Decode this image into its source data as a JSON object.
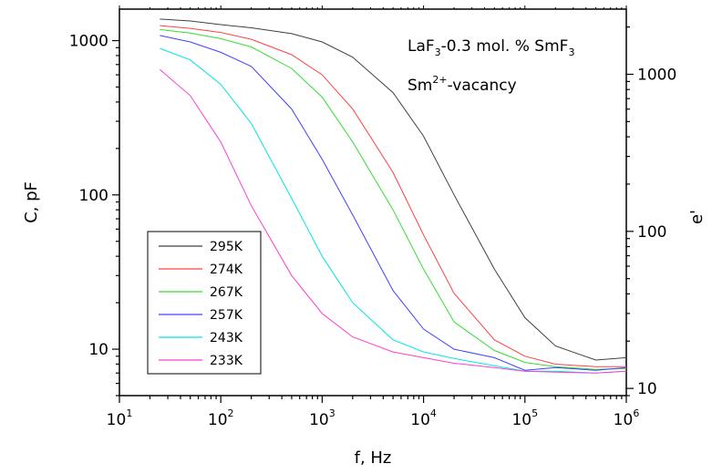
{
  "chart_data": {
    "type": "line",
    "xscale": "log",
    "yscale": "log",
    "xlabel": "f, Hz",
    "ylabel": "C, pF",
    "y2label": "e'",
    "xlim": [
      10,
      1000000
    ],
    "ylim": [
      5,
      1600
    ],
    "y2lim": [
      9,
      2600
    ],
    "x_ticks": [
      {
        "base": "10",
        "exp": "1",
        "value": 10
      },
      {
        "base": "10",
        "exp": "2",
        "value": 100
      },
      {
        "base": "10",
        "exp": "3",
        "value": 1000
      },
      {
        "base": "10",
        "exp": "4",
        "value": 10000
      },
      {
        "base": "10",
        "exp": "5",
        "value": 100000
      },
      {
        "base": "10",
        "exp": "6",
        "value": 1000000
      }
    ],
    "y_ticks": [
      {
        "label": "10",
        "value": 10
      },
      {
        "label": "100",
        "value": 100
      },
      {
        "label": "1000",
        "value": 1000
      }
    ],
    "y2_ticks": [
      {
        "label": "10",
        "value": 10
      },
      {
        "label": "100",
        "value": 100
      },
      {
        "label": "1000",
        "value": 1000
      }
    ],
    "annotations": {
      "line1": {
        "a": "LaF",
        "a_sub": "3",
        "b": "-0.3 mol. % SmF",
        "b_sub": "3"
      },
      "line2": {
        "a": "Sm",
        "a_sup": "2+",
        "b": "-vacancy"
      }
    },
    "legend_position": "lower-left",
    "x": [
      25,
      50,
      100,
      200,
      500,
      1000,
      2000,
      5000,
      10000,
      20000,
      50000,
      100000,
      200000,
      500000,
      1000000
    ],
    "series": [
      {
        "name": "295K",
        "color": "#404040",
        "values": [
          1380,
          1340,
          1270,
          1210,
          1110,
          980,
          780,
          460,
          240,
          100,
          33,
          16,
          10.5,
          8.5,
          8.8
        ]
      },
      {
        "name": "274K",
        "color": "#ff4040",
        "values": [
          1250,
          1200,
          1130,
          1020,
          810,
          600,
          360,
          140,
          55,
          23,
          11.5,
          9.0,
          8.0,
          7.7,
          7.7
        ]
      },
      {
        "name": "267K",
        "color": "#33dd33",
        "values": [
          1180,
          1120,
          1030,
          910,
          660,
          430,
          220,
          80,
          33,
          15,
          9.8,
          8.2,
          7.7,
          7.4,
          7.5
        ]
      },
      {
        "name": "257K",
        "color": "#4040ff",
        "values": [
          1080,
          980,
          840,
          680,
          360,
          170,
          74,
          24,
          13.5,
          10,
          8.8,
          7.3,
          7.6,
          7.3,
          7.6
        ]
      },
      {
        "name": "243K",
        "color": "#00e5e5",
        "values": [
          890,
          750,
          520,
          290,
          95,
          40,
          20,
          11.5,
          9.6,
          8.7,
          7.8,
          7.2,
          7.2,
          7.0,
          7.2
        ]
      },
      {
        "name": "233K",
        "color": "#ff3dd1",
        "values": [
          650,
          440,
          220,
          85,
          30,
          17,
          12,
          9.6,
          8.8,
          8.1,
          7.6,
          7.2,
          7.1,
          7.0,
          7.2
        ]
      }
    ]
  }
}
